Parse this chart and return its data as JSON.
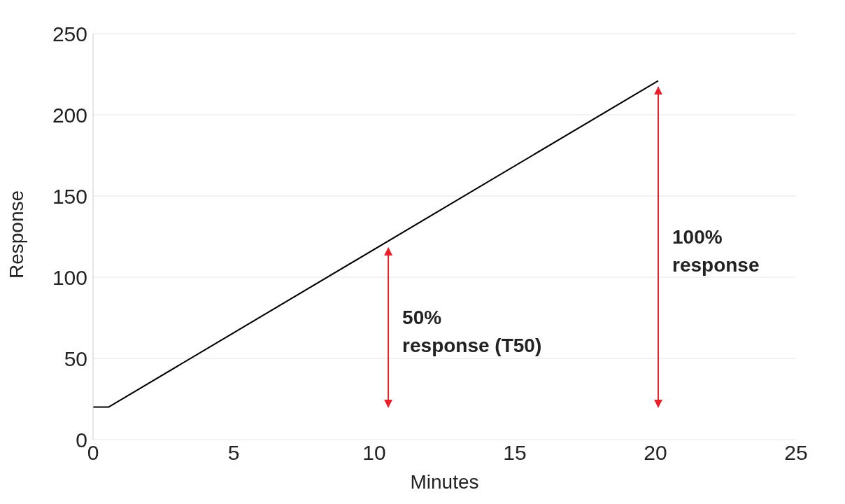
{
  "chart_data": {
    "type": "line",
    "xlabel": "Minutes",
    "ylabel": "Response",
    "x": [
      0,
      0.55,
      20.1
    ],
    "series": [
      {
        "color": "#000000",
        "values": [
          20,
          20,
          221
        ]
      }
    ],
    "xlim": [
      0,
      25
    ],
    "xticks": [
      0,
      5,
      10,
      15,
      20,
      25
    ],
    "ylim": [
      0,
      250
    ],
    "yticks": [
      0,
      50,
      100,
      150,
      200,
      250
    ],
    "grid": "y",
    "marker": "none",
    "line_style": "solid",
    "annotations": [
      "50%\nresponse (T50)",
      "100%\nresponse"
    ]
  }
}
